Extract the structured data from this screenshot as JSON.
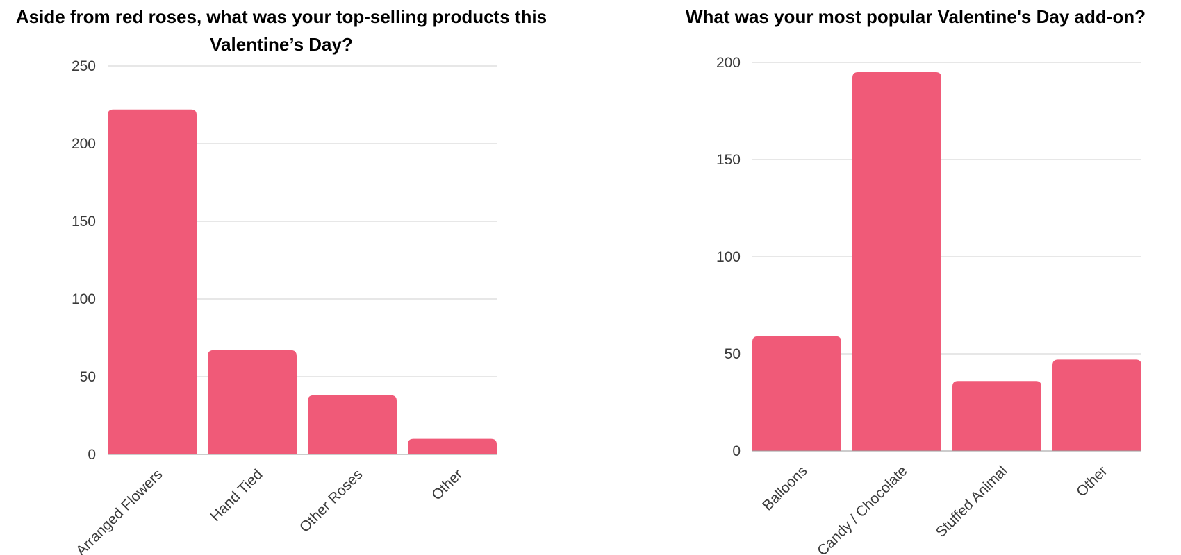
{
  "bar_color": "#f05a78",
  "chart_data": [
    {
      "type": "bar",
      "title_lines": [
        "Aside from red roses, what was your top-selling products this",
        "Valentine’s Day?"
      ],
      "categories": [
        "Arranged Flowers",
        "Hand Tied",
        "Other Roses",
        "Other"
      ],
      "values": [
        222,
        67,
        38,
        10
      ],
      "yticks": [
        0,
        50,
        100,
        150,
        200,
        250
      ],
      "ylim": [
        0,
        250
      ],
      "grid": true
    },
    {
      "type": "bar",
      "title_lines": [
        "What was your most popular Valentine's Day add-on?"
      ],
      "categories": [
        "Balloons",
        "Candy / Chocolate",
        "Stuffed Animal",
        "Other"
      ],
      "values": [
        59,
        195,
        36,
        47
      ],
      "yticks": [
        0,
        50,
        100,
        150,
        200
      ],
      "ylim": [
        0,
        200
      ],
      "grid": true
    }
  ]
}
